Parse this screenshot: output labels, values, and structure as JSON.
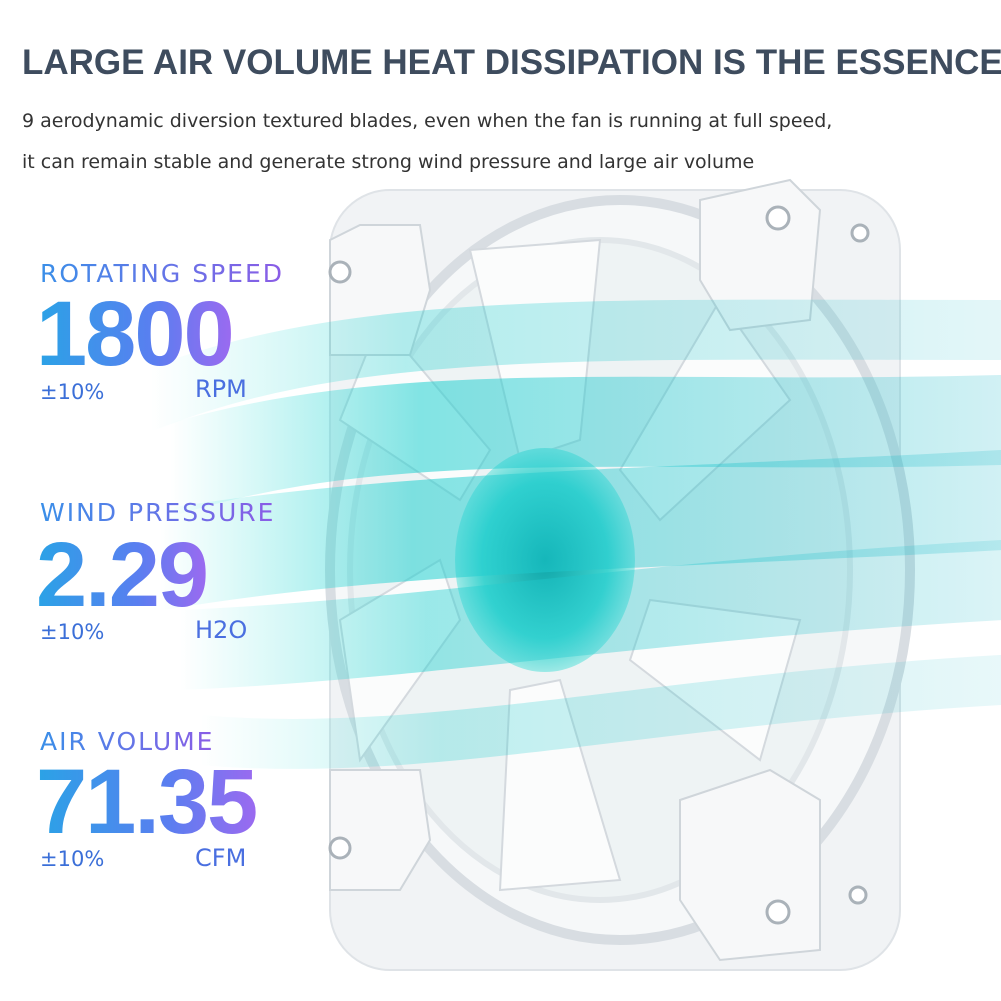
{
  "header": {
    "title": "LARGE AIR VOLUME HEAT DISSIPATION IS THE ESSENCE.",
    "lines": [
      "9 aerodynamic diversion textured blades, even when the fan is running at full speed,",
      "it can remain stable and generate strong wind pressure and large air volume"
    ]
  },
  "specs": [
    {
      "label": "ROTATING SPEED",
      "value": "1800",
      "tolerance": "±10%",
      "unit": "RPM"
    },
    {
      "label": "WIND PRESSURE",
      "value": "2.29",
      "tolerance": "±10%",
      "unit": "H2O"
    },
    {
      "label": "AIR VOLUME",
      "value": "71.35",
      "tolerance": "±10%",
      "unit": "CFM"
    }
  ]
}
